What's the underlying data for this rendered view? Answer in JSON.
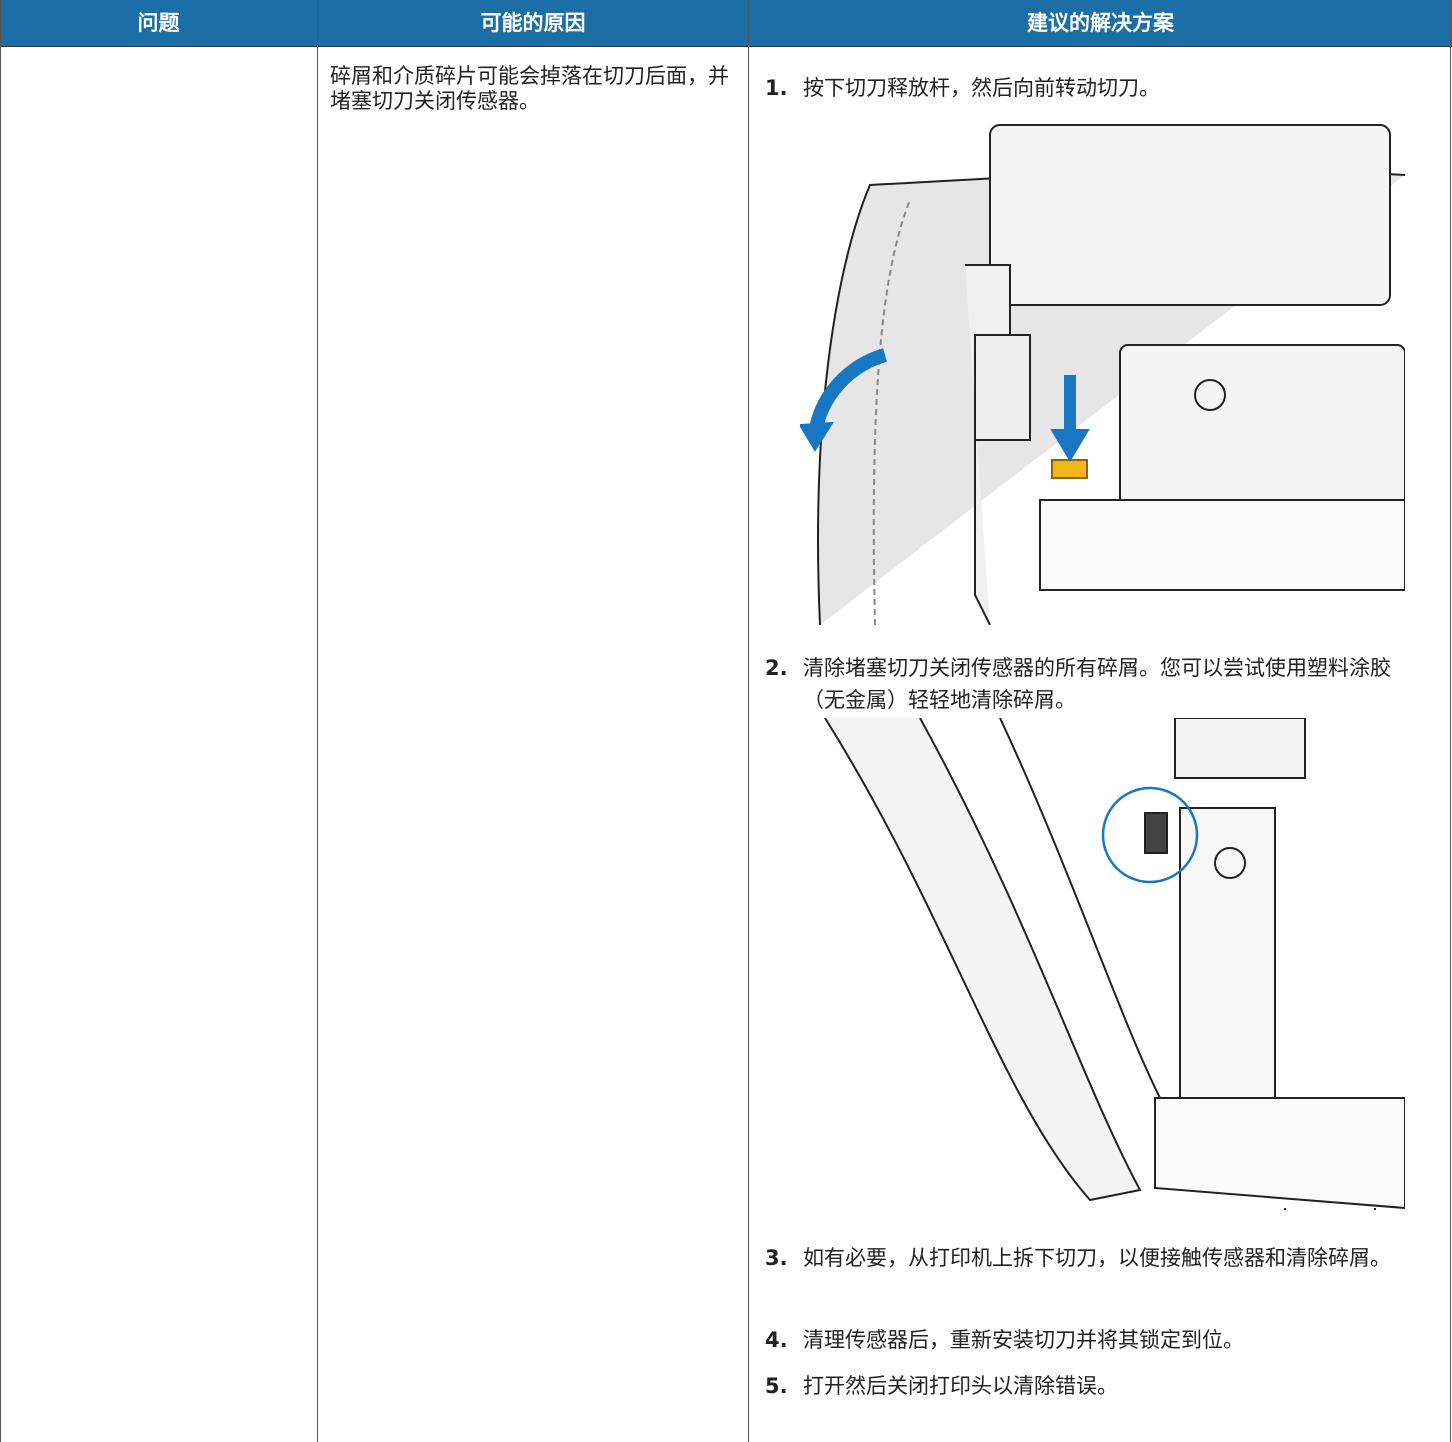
{
  "header": {
    "columns": [
      "问题",
      "可能的原因",
      "建议的解决方案"
    ]
  },
  "rows": [
    {
      "problem": null,
      "cause": "碎屑和介质碎片可能会掉落在切刀后面，并堵塞切刀关闭传感器。",
      "steps": [
        {
          "number": "1.",
          "text": "按下切刀释放杆，然后向前转动切刀。"
        },
        {
          "number": "2.",
          "text": "清除堵塞切刀关闭传感器的所有碎屑。您可以尝试使用塑料涂胶（无金属）轻轻地清除碎屑。"
        },
        {
          "number": "3.",
          "text": "如有必要，从打印机上拆下切刀，以便接触传感器和清除碎屑。"
        },
        {
          "number": "4.",
          "text": "清理传感器后，重新安装切刀并将其锁定到位。"
        },
        {
          "number": "5.",
          "text": "打开然后关闭打印头以清除错误。"
        }
      ]
    }
  ]
}
